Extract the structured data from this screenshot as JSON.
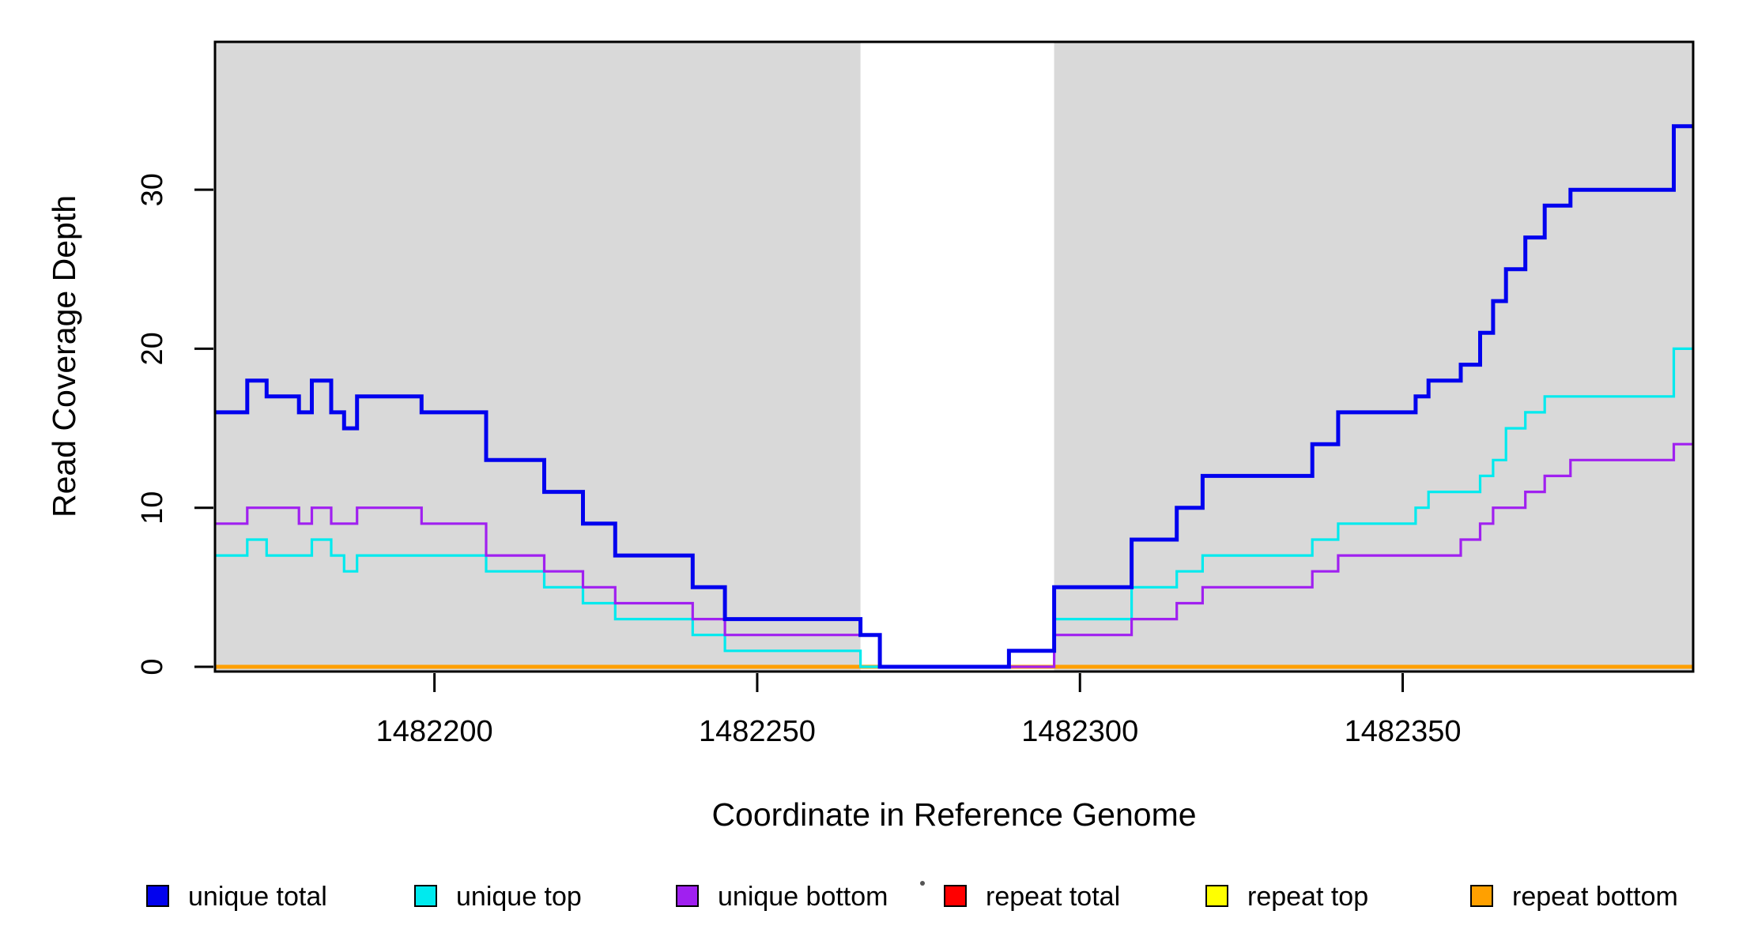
{
  "figure": {
    "background": "#FFFFFF",
    "panel_color": "#D9D9D9",
    "border_color": "#000000"
  },
  "chart_data": {
    "type": "line",
    "step": true,
    "title": "",
    "xlabel": "Coordinate in Reference Genome",
    "ylabel": "Read Coverage Depth",
    "x_range": [
      1482166,
      1482395
    ],
    "y_range": [
      0,
      39
    ],
    "x_ticks": [
      1482200,
      1482250,
      1482300,
      1482350
    ],
    "y_ticks": [
      0,
      10,
      20,
      30
    ],
    "grid": false,
    "legend_position": "bottom",
    "shaded_regions": [
      {
        "x0": 1482166,
        "x1": 1482266,
        "color": "#D9D9D9"
      },
      {
        "x0": 1482296,
        "x1": 1482395,
        "color": "#D9D9D9"
      }
    ],
    "series": [
      {
        "name": "repeat total",
        "color": "#FF0000",
        "width": 3.2,
        "step_points": [
          [
            1482166,
            0
          ]
        ]
      },
      {
        "name": "repeat top",
        "color": "#FFFF00",
        "width": 3.2,
        "step_points": [
          [
            1482166,
            0
          ]
        ]
      },
      {
        "name": "repeat bottom",
        "color": "#FFA000",
        "width": 5,
        "step_points": [
          [
            1482166,
            0
          ]
        ]
      },
      {
        "name": "unique top",
        "color": "#00EAEE",
        "width": 3.2,
        "step_points": [
          [
            1482166,
            7
          ],
          [
            1482171,
            8
          ],
          [
            1482174,
            7
          ],
          [
            1482181,
            8
          ],
          [
            1482184,
            7
          ],
          [
            1482186,
            6
          ],
          [
            1482188,
            7
          ],
          [
            1482208,
            6
          ],
          [
            1482217,
            5
          ],
          [
            1482223,
            4
          ],
          [
            1482228,
            3
          ],
          [
            1482240,
            2
          ],
          [
            1482245,
            1
          ],
          [
            1482266,
            0
          ],
          [
            1482289,
            1
          ],
          [
            1482296,
            3
          ],
          [
            1482308,
            5
          ],
          [
            1482315,
            6
          ],
          [
            1482319,
            7
          ],
          [
            1482336,
            8
          ],
          [
            1482340,
            9
          ],
          [
            1482352,
            10
          ],
          [
            1482354,
            11
          ],
          [
            1482362,
            12
          ],
          [
            1482364,
            13
          ],
          [
            1482366,
            15
          ],
          [
            1482369,
            16
          ],
          [
            1482372,
            17
          ],
          [
            1482392,
            20
          ]
        ]
      },
      {
        "name": "unique bottom",
        "color": "#A020F0",
        "width": 3.2,
        "step_points": [
          [
            1482166,
            9
          ],
          [
            1482171,
            10
          ],
          [
            1482179,
            9
          ],
          [
            1482181,
            10
          ],
          [
            1482184,
            9
          ],
          [
            1482188,
            10
          ],
          [
            1482198,
            9
          ],
          [
            1482208,
            7
          ],
          [
            1482217,
            6
          ],
          [
            1482223,
            5
          ],
          [
            1482228,
            4
          ],
          [
            1482240,
            3
          ],
          [
            1482245,
            2
          ],
          [
            1482269,
            0
          ],
          [
            1482296,
            2
          ],
          [
            1482308,
            3
          ],
          [
            1482315,
            4
          ],
          [
            1482319,
            5
          ],
          [
            1482336,
            6
          ],
          [
            1482340,
            7
          ],
          [
            1482359,
            8
          ],
          [
            1482362,
            9
          ],
          [
            1482364,
            10
          ],
          [
            1482369,
            11
          ],
          [
            1482372,
            12
          ],
          [
            1482376,
            13
          ],
          [
            1482392,
            14
          ]
        ]
      },
      {
        "name": "unique total",
        "color": "#0202EE",
        "width": 5,
        "step_points": [
          [
            1482166,
            16
          ],
          [
            1482171,
            18
          ],
          [
            1482174,
            17
          ],
          [
            1482179,
            16
          ],
          [
            1482181,
            18
          ],
          [
            1482184,
            16
          ],
          [
            1482186,
            15
          ],
          [
            1482188,
            17
          ],
          [
            1482198,
            16
          ],
          [
            1482208,
            13
          ],
          [
            1482217,
            11
          ],
          [
            1482223,
            9
          ],
          [
            1482228,
            7
          ],
          [
            1482240,
            5
          ],
          [
            1482245,
            3
          ],
          [
            1482266,
            2
          ],
          [
            1482269,
            0
          ],
          [
            1482289,
            1
          ],
          [
            1482296,
            5
          ],
          [
            1482308,
            8
          ],
          [
            1482315,
            10
          ],
          [
            1482319,
            12
          ],
          [
            1482336,
            14
          ],
          [
            1482340,
            16
          ],
          [
            1482352,
            17
          ],
          [
            1482354,
            18
          ],
          [
            1482359,
            19
          ],
          [
            1482362,
            21
          ],
          [
            1482364,
            23
          ],
          [
            1482366,
            25
          ],
          [
            1482369,
            27
          ],
          [
            1482372,
            29
          ],
          [
            1482376,
            30
          ],
          [
            1482392,
            34
          ]
        ]
      }
    ]
  },
  "legend": {
    "items": [
      {
        "label": "unique total",
        "color": "#0202EE"
      },
      {
        "label": "unique top",
        "color": "#00EAEE"
      },
      {
        "label": "unique bottom",
        "color": "#A020F0"
      },
      {
        "label": "repeat total",
        "color": "#FF0000"
      },
      {
        "label": "repeat top",
        "color": "#FFFF00"
      },
      {
        "label": "repeat bottom",
        "color": "#FFA000"
      }
    ]
  }
}
